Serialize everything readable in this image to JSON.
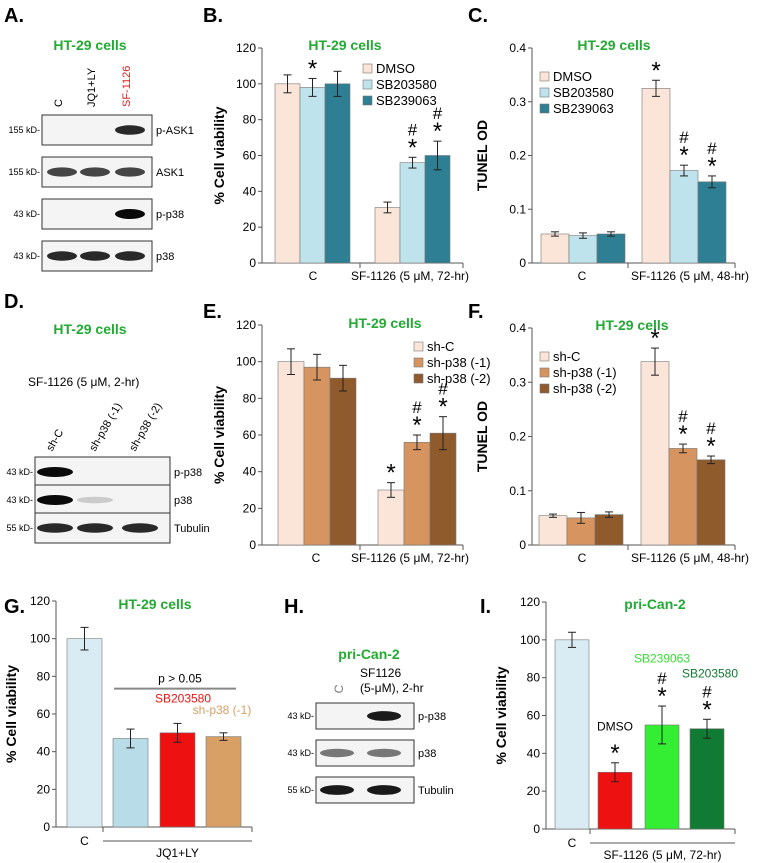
{
  "panel_letters": [
    "A.",
    "B.",
    "C.",
    "D.",
    "E.",
    "F.",
    "G.",
    "H.",
    "I."
  ],
  "colors": {
    "title_green": "#22aa33",
    "sf_red": "#dd2222",
    "dmso": "#fbe4d8",
    "sb203580": "#bfe3ec",
    "sb239063": "#2e7f93",
    "shC": "#fbe4d8",
    "shp38_1": "#d69560",
    "shp38_2": "#8f5a2c",
    "g_ctrl": "#d9ecf3",
    "g_sb": "#b8dde8",
    "g_red": "#ee1111",
    "g_tan": "#d8a064",
    "i_ctrl": "#d9ecf3",
    "i_red": "#ee1111",
    "i_lime": "#33ee33",
    "i_dkgreen": "#117a33",
    "i_sb239063_label": "#33dd33",
    "i_sb203580_label": "#117a33"
  },
  "blotA": {
    "title": "HT-29 cells",
    "lanes": [
      "C",
      "JQ1+LY",
      "SF-1126"
    ],
    "bands": [
      {
        "label": "p-ASK1",
        "kd": "155 kD-",
        "intensity": [
          0.0,
          0.0,
          0.9
        ]
      },
      {
        "label": "ASK1",
        "kd": "155 kD-",
        "intensity": [
          0.8,
          0.8,
          0.8
        ]
      },
      {
        "label": "p-p38",
        "kd": "43 kD-",
        "intensity": [
          0.0,
          0.0,
          1.0
        ]
      },
      {
        "label": "p38",
        "kd": "43 kD-",
        "intensity": [
          0.9,
          0.9,
          0.9
        ]
      }
    ]
  },
  "blotD": {
    "title": "HT-29 cells",
    "treatment": "SF-1126 (5 μM, 2-hr)",
    "lanes": [
      "sh-C",
      "sh-p38 (-1)",
      "sh-p38 (-2)"
    ],
    "bands": [
      {
        "label": "p-p38",
        "kd": "43 kD-",
        "intensity": [
          1.0,
          0.0,
          0.0
        ]
      },
      {
        "label": "p38",
        "kd": "43 kD-",
        "intensity": [
          1.0,
          0.15,
          0.0
        ]
      },
      {
        "label": "Tubulin",
        "kd": "55 kD-",
        "intensity": [
          0.9,
          0.9,
          0.9
        ]
      }
    ]
  },
  "blotH": {
    "title": "pri-Can-2",
    "lanes": [
      "C",
      "SF1126",
      "(5-μM), 2-hr"
    ],
    "bands": [
      {
        "label": "p-p38",
        "kd": "43 kD-",
        "intensity": [
          0.0,
          0.95
        ]
      },
      {
        "label": "p38",
        "kd": "43 kD-",
        "intensity": [
          0.6,
          0.6
        ]
      },
      {
        "label": "Tubulin",
        "kd": "55 kD-",
        "intensity": [
          0.95,
          0.95
        ]
      }
    ]
  },
  "chart_data": [
    {
      "panel": "B",
      "type": "bar",
      "title": "HT-29 cells",
      "ylabel": "% Cell viability",
      "categories": [
        "C",
        "SF-1126 (5 μM, 72-hr)"
      ],
      "ylim": [
        0,
        120
      ],
      "yticks": [
        0,
        20,
        40,
        60,
        80,
        100,
        120
      ],
      "series": [
        {
          "name": "DMSO",
          "values": [
            100,
            31
          ],
          "errors": [
            5,
            3
          ]
        },
        {
          "name": "SB203580",
          "values": [
            98,
            56
          ],
          "errors": [
            5,
            3
          ]
        },
        {
          "name": "SB239063",
          "values": [
            100,
            60
          ],
          "errors": [
            7,
            8
          ]
        }
      ],
      "annotations": [
        [
          "",
          ""
        ],
        [
          "*",
          "#*"
        ],
        [
          "",
          "#*"
        ]
      ]
    },
    {
      "panel": "C",
      "type": "bar",
      "title": "HT-29 cells",
      "ylabel": "TUNEL OD",
      "categories": [
        "C",
        "SF-1126 (5 μM, 48-hr)"
      ],
      "ylim": [
        0,
        0.4
      ],
      "yticks": [
        0,
        0.1,
        0.2,
        0.3,
        0.4
      ],
      "series": [
        {
          "name": "DMSO",
          "values": [
            0.054,
            0.325
          ],
          "errors": [
            0.004,
            0.015
          ]
        },
        {
          "name": "SB203580",
          "values": [
            0.051,
            0.172
          ],
          "errors": [
            0.005,
            0.01
          ]
        },
        {
          "name": "SB239063",
          "values": [
            0.054,
            0.151
          ],
          "errors": [
            0.004,
            0.011
          ]
        }
      ],
      "annotations": [
        [
          "",
          "*"
        ],
        [
          "",
          "#*"
        ],
        [
          "",
          "#*"
        ]
      ]
    },
    {
      "panel": "E",
      "type": "bar",
      "title": "HT-29 cells",
      "ylabel": "% Cell viability",
      "categories": [
        "C",
        "SF-1126 (5 μM, 72-hr)"
      ],
      "ylim": [
        0,
        120
      ],
      "yticks": [
        0,
        20,
        40,
        60,
        80,
        100,
        120
      ],
      "series": [
        {
          "name": "sh-C",
          "values": [
            100,
            30
          ],
          "errors": [
            7,
            4
          ]
        },
        {
          "name": "sh-p38 (-1)",
          "values": [
            97,
            56
          ],
          "errors": [
            7,
            4
          ]
        },
        {
          "name": "sh-p38 (-2)",
          "values": [
            91,
            61
          ],
          "errors": [
            7,
            9
          ]
        }
      ],
      "annotations": [
        [
          "",
          "*"
        ],
        [
          "",
          "#*"
        ],
        [
          "",
          "#*"
        ]
      ]
    },
    {
      "panel": "F",
      "type": "bar",
      "title": "HT-29 cells",
      "ylabel": "TUNEL OD",
      "categories": [
        "C",
        "SF-1126 (5 μM, 48-hr)"
      ],
      "ylim": [
        0,
        0.4
      ],
      "yticks": [
        0,
        0.1,
        0.2,
        0.3,
        0.4
      ],
      "series": [
        {
          "name": "sh-C",
          "values": [
            0.054,
            0.338
          ],
          "errors": [
            0.003,
            0.025
          ]
        },
        {
          "name": "sh-p38 (-1)",
          "values": [
            0.05,
            0.178
          ],
          "errors": [
            0.01,
            0.008
          ]
        },
        {
          "name": "sh-p38 (-2)",
          "values": [
            0.056,
            0.157
          ],
          "errors": [
            0.005,
            0.007
          ]
        }
      ],
      "annotations": [
        [
          "",
          "*"
        ],
        [
          "",
          "#*"
        ],
        [
          "",
          "#*"
        ]
      ]
    },
    {
      "panel": "G",
      "type": "bar",
      "title": "HT-29 cells",
      "ylabel": "% Cell viability",
      "categories": [
        "C",
        "",
        "",
        ""
      ],
      "group_label": "JQ1+LY",
      "bracket_text": "p > 0.05",
      "ylim": [
        0,
        120
      ],
      "yticks": [
        0,
        20,
        40,
        60,
        80,
        100,
        120
      ],
      "values": [
        100,
        47,
        50,
        48
      ],
      "errors": [
        6,
        5,
        5,
        2
      ],
      "bar_labels": [
        "",
        "",
        "SB203580",
        "sh-p38 (-1)"
      ]
    },
    {
      "panel": "I",
      "type": "bar",
      "title": "pri-Can-2",
      "ylabel": "% Cell viability",
      "categories": [
        "C",
        "",
        "",
        ""
      ],
      "group_label": "SF-1126 (5 μM, 72-hr)",
      "ylim": [
        0,
        120
      ],
      "yticks": [
        0,
        20,
        40,
        60,
        80,
        100,
        120
      ],
      "values": [
        100,
        30,
        55,
        53
      ],
      "errors": [
        4,
        5,
        10,
        5
      ],
      "bar_labels": [
        "",
        "DMSO",
        "SB239063",
        "SB203580"
      ],
      "annotations": [
        "",
        "*",
        "#*",
        "#*"
      ]
    }
  ]
}
